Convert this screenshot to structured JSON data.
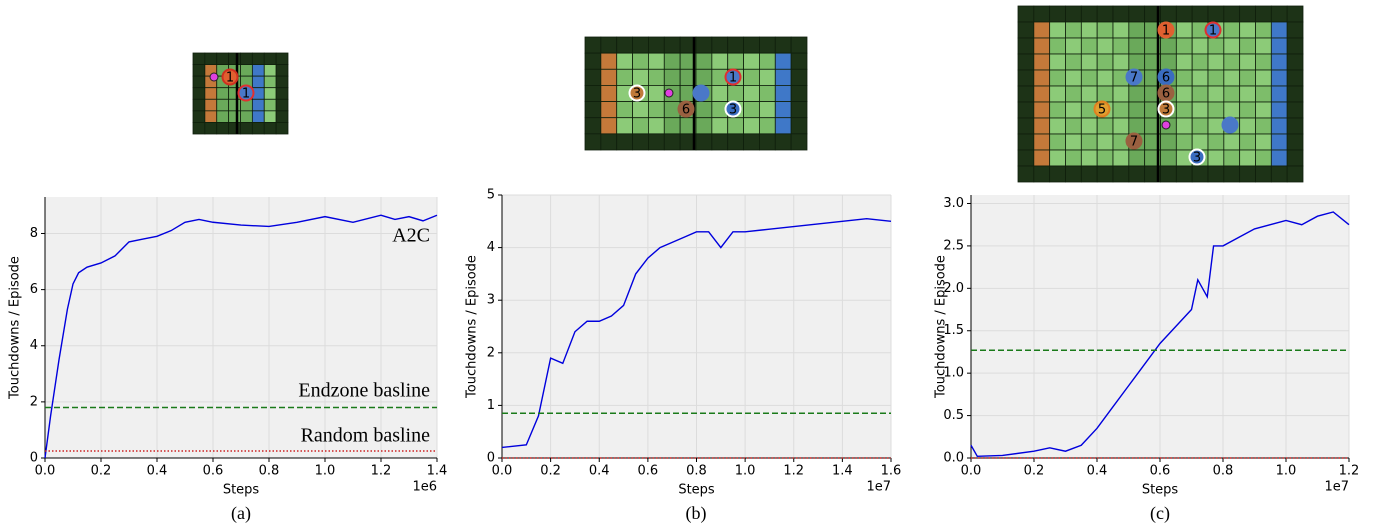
{
  "chart_data": [
    {
      "type": "line",
      "caption": "(a)",
      "xlabel": "Steps",
      "ylabel": "Touchdowns / Episode",
      "x_offset_label": "1e6",
      "xlim": [
        0,
        1.4
      ],
      "ylim": [
        0,
        9.3
      ],
      "grid": true,
      "xticks": [
        {
          "value": 0,
          "label": "0.0"
        },
        0.2,
        0.4,
        0.6,
        0.8,
        {
          "value": 1,
          "label": "1.0"
        },
        1.2,
        1.4
      ],
      "yticks": [
        0,
        2,
        4,
        6,
        8
      ],
      "board": {
        "labels": [
          "1",
          "1"
        ]
      },
      "series": [
        {
          "name": "A2C",
          "color": "#0000dd",
          "label_color": "#4a5fd0",
          "style": "solid",
          "x": [
            0,
            0.02,
            0.05,
            0.08,
            0.1,
            0.12,
            0.15,
            0.2,
            0.25,
            0.3,
            0.35,
            0.4,
            0.45,
            0.5,
            0.55,
            0.6,
            0.7,
            0.8,
            0.9,
            1.0,
            1.1,
            1.2,
            1.25,
            1.3,
            1.35,
            1.4
          ],
          "values": [
            0,
            1.5,
            3.5,
            5.3,
            6.2,
            6.6,
            6.8,
            6.95,
            7.2,
            7.7,
            7.8,
            7.9,
            8.1,
            8.4,
            8.5,
            8.4,
            8.3,
            8.25,
            8.4,
            8.6,
            8.4,
            8.65,
            8.5,
            8.6,
            8.45,
            8.65
          ]
        },
        {
          "name": "Endzone basline",
          "color": "#1a7a1a",
          "label_color": "#3cb82f",
          "style": "dashed",
          "x": [
            0,
            1.4
          ],
          "values": [
            1.8,
            1.8
          ]
        },
        {
          "name": "Random basline",
          "color": "#cc2222",
          "label_color": "#a52a2a",
          "style": "dotted",
          "x": [
            0,
            1.4
          ],
          "values": [
            0.25,
            0.25
          ]
        }
      ]
    },
    {
      "type": "line",
      "caption": "(b)",
      "xlabel": "Steps",
      "ylabel": "Touchdowns / Episode",
      "x_offset_label": "1e7",
      "xlim": [
        0,
        1.6
      ],
      "ylim": [
        0,
        5
      ],
      "grid": true,
      "xticks": [
        {
          "value": 0,
          "label": "0.0"
        },
        0.2,
        0.4,
        0.6,
        0.8,
        {
          "value": 1,
          "label": "1.0"
        },
        1.2,
        1.4,
        1.6
      ],
      "yticks": [
        0,
        1,
        2,
        3,
        4,
        5
      ],
      "board": {
        "labels": [
          "3",
          "6",
          "1",
          "3"
        ]
      },
      "series": [
        {
          "color": "#0000dd",
          "style": "solid",
          "x": [
            0,
            0.1,
            0.15,
            0.2,
            0.25,
            0.3,
            0.35,
            0.4,
            0.45,
            0.5,
            0.55,
            0.6,
            0.65,
            0.7,
            0.75,
            0.8,
            0.85,
            0.9,
            0.95,
            1.0,
            1.1,
            1.2,
            1.3,
            1.4,
            1.5,
            1.6
          ],
          "values": [
            0.2,
            0.25,
            0.8,
            1.9,
            1.8,
            2.4,
            2.6,
            2.6,
            2.7,
            2.9,
            3.5,
            3.8,
            4.0,
            4.1,
            4.2,
            4.3,
            4.3,
            4.0,
            4.3,
            4.3,
            4.35,
            4.4,
            4.45,
            4.5,
            4.55,
            4.5
          ]
        },
        {
          "color": "#1a7a1a",
          "style": "dashed",
          "x": [
            0,
            1.6
          ],
          "values": [
            0.85,
            0.85
          ]
        },
        {
          "color": "#cc2222",
          "style": "dotted",
          "x": [
            0,
            1.6
          ],
          "values": [
            0,
            0
          ]
        }
      ]
    },
    {
      "type": "line",
      "caption": "(c)",
      "xlabel": "Steps",
      "ylabel": "Touchdowns / Episode",
      "x_offset_label": "1e7",
      "xlim": [
        0,
        1.2
      ],
      "ylim": [
        0,
        3.1
      ],
      "grid": true,
      "xticks": [
        {
          "value": 0,
          "label": "0.0"
        },
        0.2,
        0.4,
        0.6,
        0.8,
        {
          "value": 1,
          "label": "1.0"
        },
        1.2
      ],
      "yticks": [
        {
          "value": 0,
          "label": "0.0"
        },
        0.5,
        {
          "value": 1,
          "label": "1.0"
        },
        1.5,
        {
          "value": 2,
          "label": "2.0"
        },
        2.5,
        {
          "value": 3,
          "label": "3.0"
        }
      ],
      "board": {
        "labels": [
          "1",
          "1",
          "7",
          "6",
          "6",
          "3",
          "5",
          "7",
          "3"
        ]
      },
      "series": [
        {
          "color": "#0000dd",
          "style": "solid",
          "x": [
            0,
            0.02,
            0.1,
            0.2,
            0.25,
            0.3,
            0.35,
            0.4,
            0.45,
            0.5,
            0.55,
            0.6,
            0.65,
            0.7,
            0.72,
            0.75,
            0.77,
            0.8,
            0.85,
            0.9,
            0.95,
            1.0,
            1.05,
            1.1,
            1.15,
            1.2
          ],
          "values": [
            0.15,
            0.02,
            0.03,
            0.08,
            0.12,
            0.08,
            0.15,
            0.35,
            0.6,
            0.85,
            1.1,
            1.35,
            1.55,
            1.75,
            2.1,
            1.9,
            2.5,
            2.5,
            2.6,
            2.7,
            2.75,
            2.8,
            2.75,
            2.85,
            2.9,
            2.75
          ]
        },
        {
          "color": "#1a7a1a",
          "style": "dashed",
          "x": [
            0,
            1.2
          ],
          "values": [
            1.27,
            1.27
          ]
        },
        {
          "color": "#cc2222",
          "style": "dotted",
          "x": [
            0,
            1.2
          ],
          "values": [
            0,
            0
          ]
        }
      ]
    }
  ]
}
